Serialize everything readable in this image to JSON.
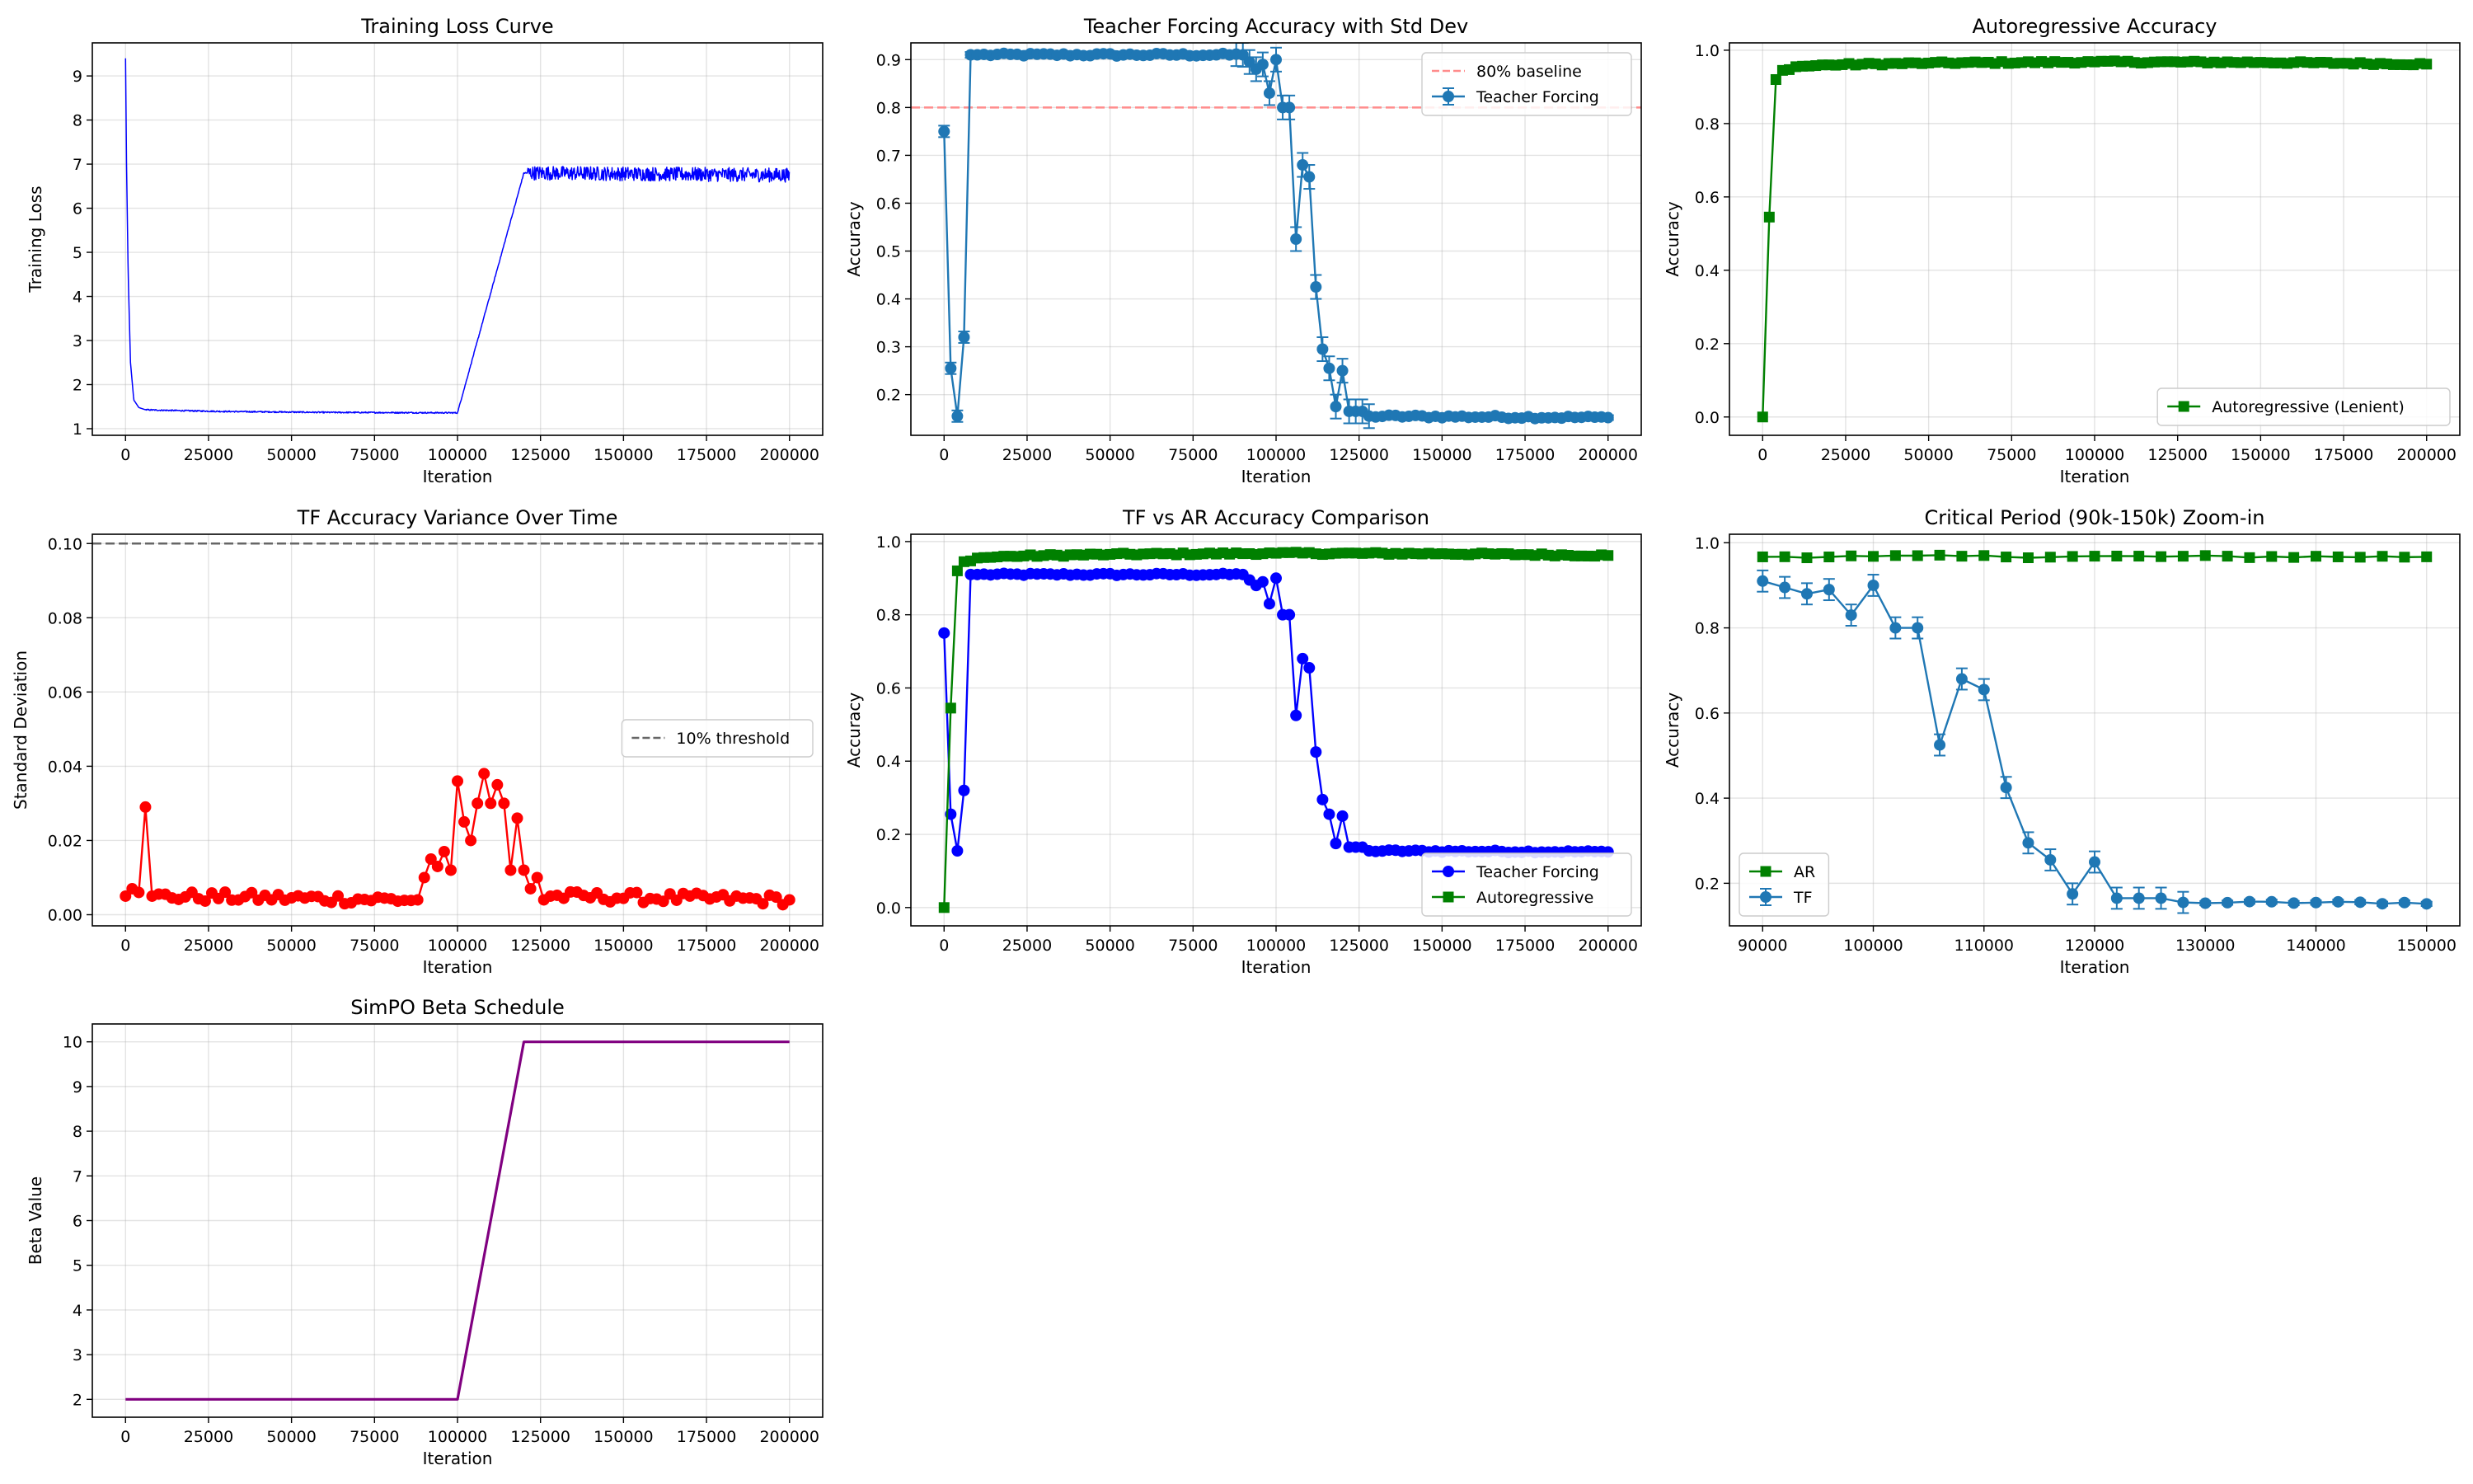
{
  "figure": {
    "background": "#ffffff"
  },
  "chart_data": [
    {
      "id": "loss",
      "type": "line",
      "title": "Training Loss Curve",
      "xlabel": "Iteration",
      "ylabel": "Training Loss",
      "xlim": [
        -10000,
        210000
      ],
      "ylim": [
        0.85,
        9.75
      ],
      "xticks": [
        0,
        25000,
        50000,
        75000,
        100000,
        125000,
        150000,
        175000,
        200000
      ],
      "yticks": [
        1,
        2,
        3,
        4,
        5,
        6,
        7,
        8,
        9
      ],
      "grid": true,
      "series": [
        {
          "color": "#0000ff",
          "noise": 0.1,
          "x": [
            0,
            300,
            800,
            1500,
            2500,
            4000,
            6000,
            10000,
            30000,
            60000,
            100000,
            120000,
            123000,
            200000
          ],
          "y": [
            9.4,
            7.0,
            4.5,
            2.5,
            1.65,
            1.48,
            1.43,
            1.42,
            1.39,
            1.37,
            1.36,
            6.8,
            6.8,
            6.75
          ]
        }
      ]
    },
    {
      "id": "tf",
      "type": "line",
      "title": "Teacher Forcing Accuracy with Std Dev",
      "xlabel": "Iteration",
      "ylabel": "Accuracy",
      "xlim": [
        -10000,
        210000
      ],
      "ylim": [
        0.115,
        0.935
      ],
      "xticks": [
        0,
        25000,
        50000,
        75000,
        100000,
        125000,
        150000,
        175000,
        200000
      ],
      "yticks": [
        0.2,
        0.3,
        0.4,
        0.5,
        0.6,
        0.7,
        0.8,
        0.9
      ],
      "grid": true,
      "hline": {
        "y": 0.8,
        "color": "#ff8c8c",
        "label": "80% baseline"
      },
      "legend": {
        "position": "upper right",
        "entries": [
          {
            "label": "80% baseline",
            "style": "dashline",
            "color": "#ff8c8c"
          },
          {
            "label": "Teacher Forcing",
            "style": "errmarker",
            "color": "#1f77b4"
          }
        ]
      },
      "series": [
        {
          "name": "Teacher Forcing",
          "color": "#1f77b4",
          "marker": "circle",
          "source": "tf_series",
          "errorbars": true
        }
      ]
    },
    {
      "id": "ar",
      "type": "line",
      "title": "Autoregressive Accuracy",
      "xlabel": "Iteration",
      "ylabel": "Accuracy",
      "xlim": [
        -10000,
        210000
      ],
      "ylim": [
        -0.05,
        1.02
      ],
      "xticks": [
        0,
        25000,
        50000,
        75000,
        100000,
        125000,
        150000,
        175000,
        200000
      ],
      "yticks": [
        0.0,
        0.2,
        0.4,
        0.6,
        0.8,
        1.0
      ],
      "grid": true,
      "legend": {
        "position": "lower right",
        "entries": [
          {
            "label": "Autoregressive (Lenient)",
            "style": "linemarker-square",
            "color": "#008000"
          }
        ]
      },
      "series": [
        {
          "name": "Autoregressive (Lenient)",
          "color": "#008000",
          "marker": "square",
          "source": "ar_series"
        }
      ]
    },
    {
      "id": "var",
      "type": "line",
      "title": "TF Accuracy Variance Over Time",
      "xlabel": "Iteration",
      "ylabel": "Standard Deviation",
      "xlim": [
        -10000,
        210000
      ],
      "ylim": [
        -0.003,
        0.1025
      ],
      "xticks": [
        0,
        25000,
        50000,
        75000,
        100000,
        125000,
        150000,
        175000,
        200000
      ],
      "yticks": [
        0.0,
        0.02,
        0.04,
        0.06,
        0.08,
        0.1
      ],
      "grid": true,
      "hline": {
        "y": 0.1,
        "color": "#666666",
        "label": "10% threshold"
      },
      "legend": {
        "position": "center right",
        "entries": [
          {
            "label": "10% threshold",
            "style": "dashline",
            "color": "#666666"
          }
        ]
      },
      "series": [
        {
          "color": "#ff0000",
          "marker": "circle",
          "source": "std_series"
        }
      ]
    },
    {
      "id": "cmp",
      "type": "line",
      "title": "TF vs AR Accuracy Comparison",
      "xlabel": "Iteration",
      "ylabel": "Accuracy",
      "xlim": [
        -10000,
        210000
      ],
      "ylim": [
        -0.05,
        1.02
      ],
      "xticks": [
        0,
        25000,
        50000,
        75000,
        100000,
        125000,
        150000,
        175000,
        200000
      ],
      "yticks": [
        0.0,
        0.2,
        0.4,
        0.6,
        0.8,
        1.0
      ],
      "grid": true,
      "legend": {
        "position": "lower right",
        "entries": [
          {
            "label": "Teacher Forcing",
            "style": "linemarker-circle",
            "color": "#0000ff"
          },
          {
            "label": "Autoregressive",
            "style": "linemarker-square",
            "color": "#008000"
          }
        ]
      },
      "series": [
        {
          "name": "Teacher Forcing",
          "color": "#0000ff",
          "marker": "circle",
          "source": "tf_series"
        },
        {
          "name": "Autoregressive",
          "color": "#008000",
          "marker": "square",
          "source": "ar_series"
        }
      ]
    },
    {
      "id": "zoom",
      "type": "line",
      "title": "Critical Period (90k-150k) Zoom-in",
      "xlabel": "Iteration",
      "ylabel": "Accuracy",
      "xlim": [
        87000,
        153000
      ],
      "ylim": [
        0.1,
        1.02
      ],
      "xticks": [
        90000,
        100000,
        110000,
        120000,
        130000,
        140000,
        150000
      ],
      "yticks": [
        0.2,
        0.4,
        0.6,
        0.8,
        1.0
      ],
      "grid": true,
      "legend": {
        "position": "lower left",
        "entries": [
          {
            "label": "AR",
            "style": "linemarker-square",
            "color": "#008000"
          },
          {
            "label": "TF",
            "style": "errmarker",
            "color": "#1f77b4"
          }
        ]
      },
      "series": [
        {
          "name": "AR",
          "color": "#008000",
          "marker": "square",
          "source": "ar_series",
          "range": [
            90000,
            150000
          ]
        },
        {
          "name": "TF",
          "color": "#1f77b4",
          "marker": "circle",
          "source": "tf_series",
          "range": [
            90000,
            150000
          ],
          "errorbars": true
        }
      ]
    },
    {
      "id": "beta",
      "type": "line",
      "title": "SimPO Beta Schedule",
      "xlabel": "Iteration",
      "ylabel": "Beta Value",
      "xlim": [
        -10000,
        210000
      ],
      "ylim": [
        1.6,
        10.4
      ],
      "xticks": [
        0,
        25000,
        50000,
        75000,
        100000,
        125000,
        150000,
        175000,
        200000
      ],
      "yticks": [
        2,
        3,
        4,
        5,
        6,
        7,
        8,
        9,
        10
      ],
      "grid": true,
      "series": [
        {
          "color": "#800080",
          "x": [
            0,
            100000,
            120000,
            200000
          ],
          "y": [
            2,
            2,
            10,
            10
          ]
        }
      ]
    }
  ],
  "data_series": {
    "step": 2000,
    "tf_series": {
      "anchors_x": [
        0,
        2000,
        4000,
        6000,
        8000,
        10000,
        90000,
        92000,
        94000,
        96000,
        98000,
        100000,
        102000,
        104000,
        106000,
        108000,
        110000,
        112000,
        114000,
        116000,
        118000,
        120000,
        122000,
        124000,
        126000,
        128000,
        200000
      ],
      "anchors_y": [
        0.75,
        0.255,
        0.155,
        0.32,
        0.91,
        0.91,
        0.91,
        0.895,
        0.88,
        0.89,
        0.83,
        0.9,
        0.8,
        0.8,
        0.525,
        0.68,
        0.655,
        0.425,
        0.295,
        0.255,
        0.175,
        0.25,
        0.165,
        0.165,
        0.165,
        0.155,
        0.152
      ]
    },
    "ar_series": {
      "anchors_x": [
        0,
        2000,
        4000,
        6000,
        10000,
        20000,
        50000,
        100000,
        150000,
        200000
      ],
      "anchors_y": [
        0.0,
        0.545,
        0.92,
        0.945,
        0.955,
        0.96,
        0.965,
        0.968,
        0.967,
        0.962
      ]
    },
    "std_series": {
      "anchors_x": [
        0,
        2000,
        4000,
        6000,
        8000,
        88000,
        90000,
        92000,
        94000,
        96000,
        98000,
        100000,
        102000,
        104000,
        106000,
        108000,
        110000,
        112000,
        114000,
        116000,
        118000,
        120000,
        122000,
        124000,
        126000,
        128000,
        200000
      ],
      "anchors_y": [
        0.005,
        0.007,
        0.006,
        0.029,
        0.005,
        0.004,
        0.01,
        0.015,
        0.013,
        0.017,
        0.012,
        0.036,
        0.025,
        0.02,
        0.03,
        0.038,
        0.03,
        0.035,
        0.03,
        0.012,
        0.026,
        0.012,
        0.007,
        0.01,
        0.004,
        0.005,
        0.004
      ]
    }
  }
}
